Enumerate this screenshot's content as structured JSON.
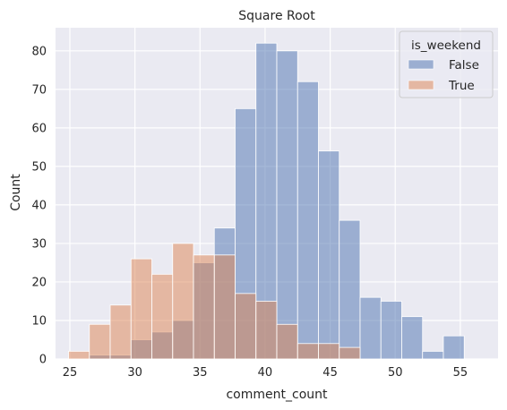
{
  "chart_data": {
    "type": "bar",
    "title": "Square Root",
    "xlabel": "comment_count",
    "ylabel": "Count",
    "xlim": [
      23.9,
      57.9
    ],
    "ylim": [
      0,
      86
    ],
    "xticks": [
      25,
      30,
      35,
      40,
      45,
      50,
      55
    ],
    "yticks": [
      0,
      10,
      20,
      30,
      40,
      50,
      60,
      70,
      80
    ],
    "grid": true,
    "legend": {
      "title": "is_weekend",
      "placement": "upper right"
    },
    "bin_edges": [
      24.9,
      26.5,
      28.1,
      29.7,
      31.3,
      32.9,
      34.5,
      36.1,
      37.7,
      39.3,
      40.9,
      42.5,
      44.1,
      45.7,
      47.3,
      48.9,
      50.5,
      52.1,
      53.7,
      55.3,
      56.9
    ],
    "series": [
      {
        "name": "False",
        "color": "#4c72b0",
        "values": [
          0,
          1,
          1,
          5,
          7,
          10,
          25,
          34,
          65,
          82,
          80,
          72,
          54,
          36,
          16,
          15,
          11,
          2,
          6,
          0
        ]
      },
      {
        "name": "True",
        "color": "#dd8452",
        "values": [
          2,
          9,
          14,
          26,
          22,
          30,
          27,
          27,
          17,
          15,
          9,
          4,
          4,
          3,
          0,
          0,
          0,
          0,
          0,
          0
        ]
      }
    ]
  }
}
